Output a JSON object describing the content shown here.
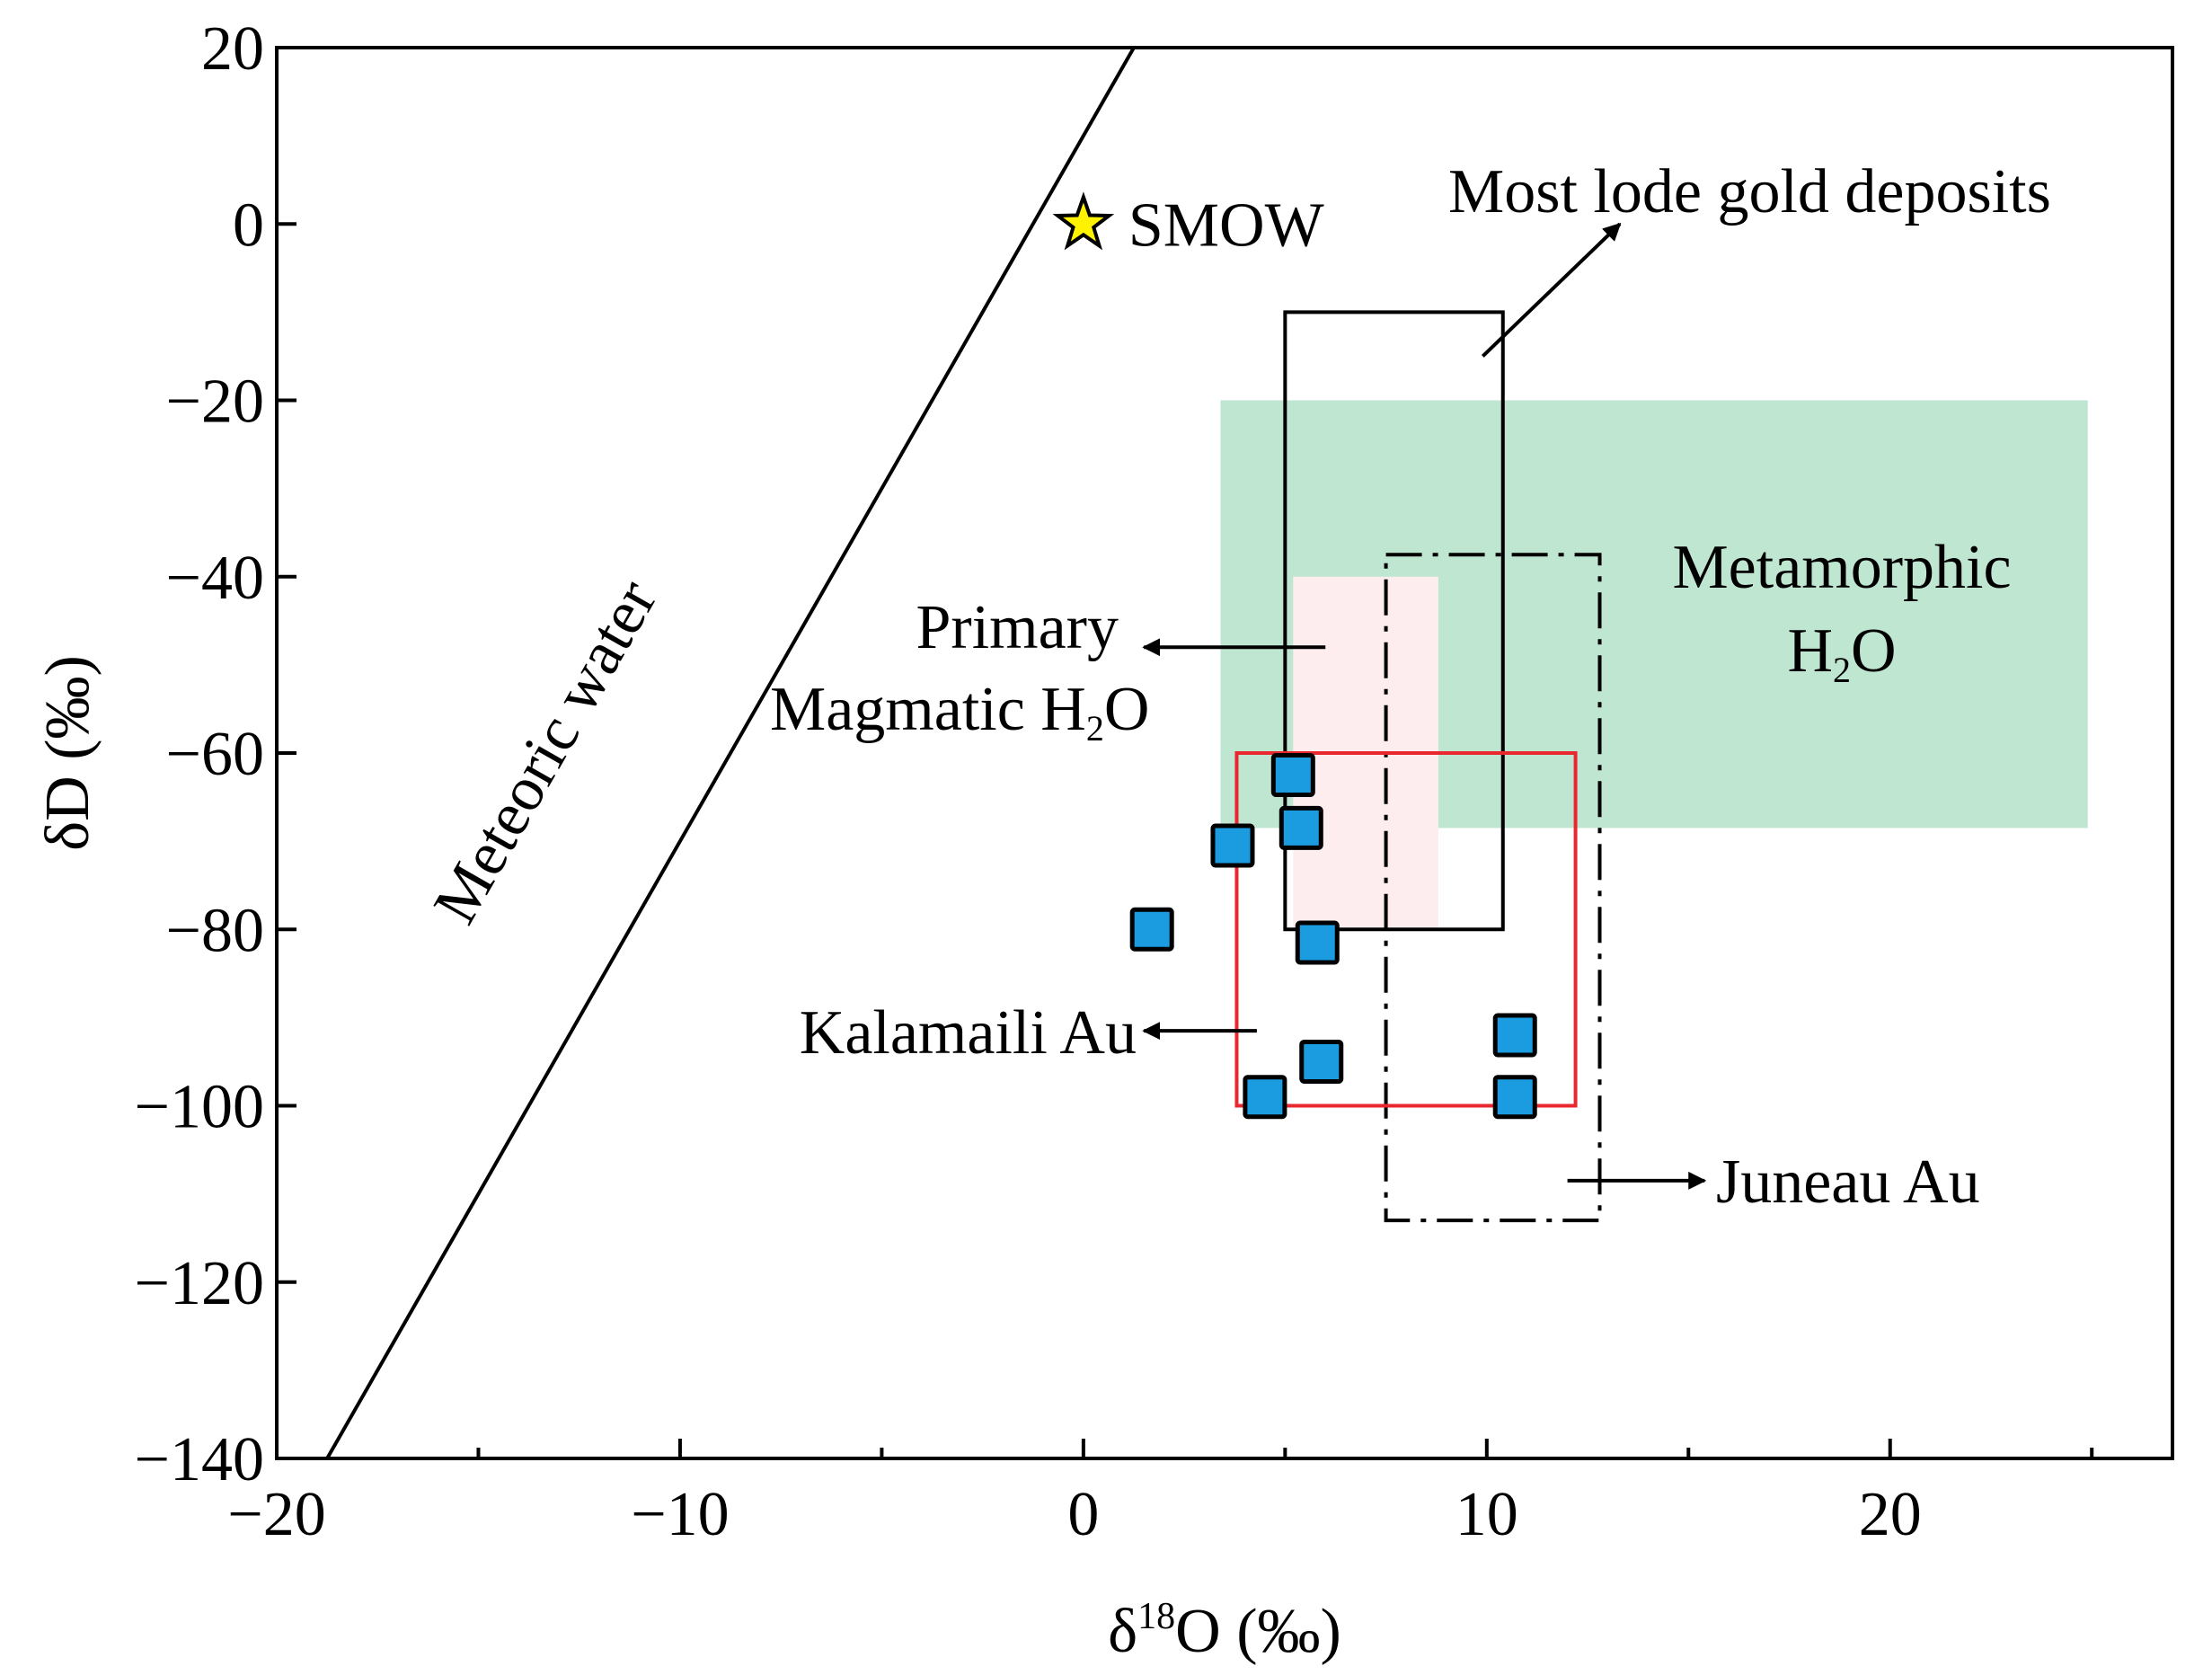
{
  "chart_data": {
    "type": "scatter",
    "title": "",
    "xlabel": "δ18O (‰)",
    "xlabel_parts": {
      "pre": "δ",
      "sup": "18",
      "post": "O (‰)"
    },
    "ylabel": "δD (‰)",
    "xlim": [
      -20,
      27
    ],
    "ylim": [
      -140,
      20
    ],
    "x_major_ticks": [
      -20,
      -10,
      0,
      10,
      20
    ],
    "x_minor_ticks": [
      -15,
      -5,
      5,
      15,
      25
    ],
    "y_major_ticks": [
      20,
      0,
      -20,
      -40,
      -60,
      -80,
      -100,
      -120,
      -140
    ],
    "x_tick_labels": [
      "−20",
      "−10",
      "0",
      "10",
      "20"
    ],
    "y_tick_labels": [
      "20",
      "0",
      "−20",
      "−40",
      "−60",
      "−80",
      "−100",
      "−120",
      "−140"
    ],
    "grid": false,
    "series": [
      {
        "name": "Kalamaili Au samples",
        "marker": "square",
        "color": "#1B9BE0",
        "points": [
          {
            "x": 5.2,
            "y": -62.5
          },
          {
            "x": 3.7,
            "y": -70.5
          },
          {
            "x": 5.4,
            "y": -68.5
          },
          {
            "x": 1.7,
            "y": -80
          },
          {
            "x": 5.8,
            "y": -81.5
          },
          {
            "x": 5.9,
            "y": -95
          },
          {
            "x": 4.5,
            "y": -99
          },
          {
            "x": 10.7,
            "y": -92
          },
          {
            "x": 10.7,
            "y": -99
          }
        ]
      }
    ],
    "meteoric_water_line": {
      "label": "Meteoric water",
      "from": [
        -18.75,
        -140
      ],
      "to": [
        1.25,
        20
      ]
    },
    "smow": {
      "label": "SMOW",
      "x": 0,
      "y": 0,
      "color": "#FFF200"
    },
    "fields": [
      {
        "name": "Metamorphic H2O",
        "x": [
          3.4,
          24.9
        ],
        "y": [
          -68.5,
          -20
        ],
        "fill": "#BFE6D0"
      },
      {
        "name": "Primary Magmatic H2O",
        "x": [
          5.2,
          8.8
        ],
        "y": [
          -80,
          -40
        ],
        "fill": "#FDEDEE"
      },
      {
        "name": "Most lode gold deposits",
        "x": [
          5,
          10.4
        ],
        "y": [
          -80,
          -10
        ],
        "stroke": "#000000",
        "dash": "solid"
      },
      {
        "name": "Juneau Au",
        "x": [
          7.5,
          12.8
        ],
        "y": [
          -113,
          -37.5
        ],
        "stroke": "#000000",
        "dash": "dashdot"
      },
      {
        "name": "Kalamaili Au",
        "x": [
          3.8,
          12.2
        ],
        "y": [
          -100,
          -60
        ],
        "stroke": "#E8282E",
        "dash": "solid"
      }
    ],
    "annotations": {
      "smow": "SMOW",
      "meteoric": "Meteoric water",
      "most_lode": "Most lode gold deposits",
      "metamorphic_line1": "Metamorphic",
      "metamorphic_line2": {
        "pre": "H",
        "sub": "2",
        "post": "O"
      },
      "primary_line1": "Primary",
      "primary_line2": {
        "pre": "Magmatic H",
        "sub": "2",
        "post": "O"
      },
      "kalamaili": "Kalamaili Au",
      "juneau": "Juneau Au"
    },
    "arrows": [
      {
        "name": "most-lode-arrow",
        "from": [
          9.9,
          -15
        ],
        "to": [
          13.3,
          0
        ]
      },
      {
        "name": "primary-arrow",
        "from": [
          6,
          -48
        ],
        "to": [
          1.5,
          -48
        ]
      },
      {
        "name": "kalamaili-arrow",
        "from": [
          4.3,
          -91.5
        ],
        "to": [
          1.5,
          -91.5
        ]
      },
      {
        "name": "juneau-arrow",
        "from": [
          12,
          -108.5
        ],
        "to": [
          15.4,
          -108.5
        ]
      }
    ]
  }
}
